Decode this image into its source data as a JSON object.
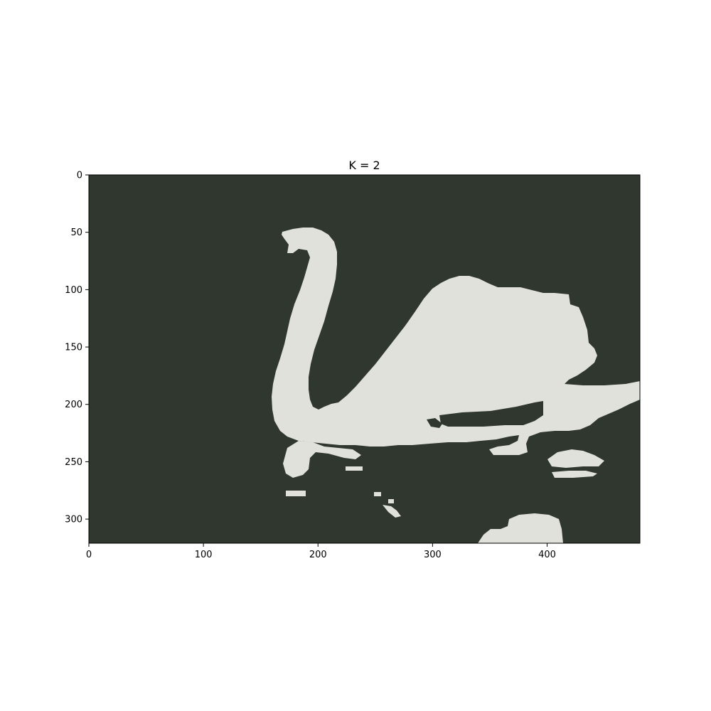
{
  "chart_data": {
    "type": "heatmap",
    "title": "K = 2",
    "xlabel": "",
    "ylabel": "",
    "xlim": [
      0,
      481
    ],
    "ylim": [
      321,
      0
    ],
    "x_ticks": [
      0,
      100,
      200,
      300,
      400
    ],
    "y_ticks": [
      0,
      50,
      100,
      150,
      200,
      250,
      300
    ],
    "x_tick_labels": [
      "0",
      "100",
      "200",
      "300",
      "400"
    ],
    "y_tick_labels": [
      "0",
      "50",
      "100",
      "150",
      "200",
      "250",
      "300"
    ],
    "grid": false,
    "legend": "none",
    "cluster_colors": {
      "background": "#30372e",
      "foreground": "#e0e1db"
    },
    "content": "Two-color K-means segmentation of a swan swimming on dark water"
  }
}
